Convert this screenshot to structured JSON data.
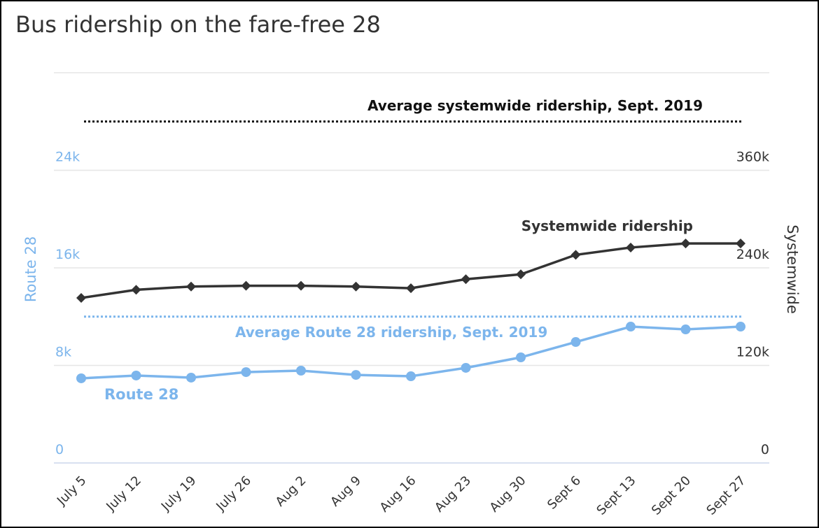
{
  "chart_data": {
    "type": "line",
    "title": "Bus ridership on the fare-free 28",
    "categories": [
      "July 5",
      "July 12",
      "July 19",
      "July 26",
      "Aug 2",
      "Aug 9",
      "Aug 16",
      "Aug 23",
      "Aug 30",
      "Sept 6",
      "Sept 13",
      "Sept 20",
      "Sept 27"
    ],
    "left_axis": {
      "label": "Route 28",
      "ticks": [
        "0",
        "8k",
        "16k",
        "24k"
      ],
      "tick_values": [
        0,
        8000,
        16000,
        24000
      ],
      "range": [
        0,
        32000
      ],
      "color": "#7cb5ec"
    },
    "right_axis": {
      "label": "Systemwide",
      "ticks": [
        "0",
        "120k",
        "240k",
        "360k"
      ],
      "tick_values": [
        0,
        120000,
        240000,
        360000
      ],
      "range": [
        0,
        480000
      ],
      "color": "#333333"
    },
    "grid": true,
    "series": [
      {
        "name": "Systemwide ridership",
        "axis": "right",
        "color": "#333333",
        "marker": "diamond",
        "values": [
          203000,
          213000,
          217000,
          218000,
          218000,
          217000,
          215000,
          226000,
          232000,
          256000,
          265000,
          270000,
          270000
        ]
      },
      {
        "name": "Route 28",
        "axis": "left",
        "color": "#7cb5ec",
        "marker": "circle",
        "values": [
          6940,
          7170,
          7000,
          7450,
          7570,
          7220,
          7110,
          7800,
          8660,
          9920,
          11180,
          10950,
          11180
        ]
      }
    ],
    "reference_lines": [
      {
        "label": "Average systemwide ridership, Sept. 2019",
        "axis": "right",
        "value": 420000,
        "color": "#111111"
      },
      {
        "label": "Average Route 28 ridership, Sept. 2019",
        "axis": "left",
        "value": 12000,
        "color": "#7cb5ec"
      }
    ]
  }
}
